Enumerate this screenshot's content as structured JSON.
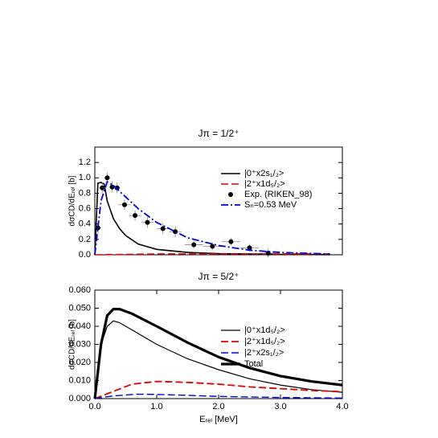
{
  "chart_data": [
    {
      "type": "line",
      "title": "Jπ = 1/2⁺",
      "ylabel": "dσCD/dEᵣₑₗ [b]",
      "xlim": [
        0,
        4
      ],
      "ylim": [
        0,
        1.4
      ],
      "yticks": [
        {
          "value": 0,
          "label": "0.0"
        },
        0.2,
        0.4,
        0.6,
        0.8,
        {
          "value": 1,
          "label": "1.0"
        },
        1.2
      ],
      "legend": "upper right",
      "series": [
        {
          "name": "|0⁺x2s₁/₂>",
          "color": "#000000",
          "dash": "solid",
          "width": 1.6,
          "x": [
            0,
            0.05,
            0.1,
            0.15,
            0.2,
            0.3,
            0.4,
            0.5,
            0.7,
            1.0,
            1.5,
            2.0,
            3.0,
            3.8
          ],
          "values": [
            0,
            0.93,
            0.94,
            0.92,
            0.7,
            0.47,
            0.34,
            0.25,
            0.14,
            0.07,
            0.03,
            0.015,
            0.005,
            0.002
          ]
        },
        {
          "name": "|2⁺x1d₅/₂>",
          "color": "#e00000",
          "dash": "dashed",
          "width": 1.6,
          "x": [
            0,
            0.5,
            1.0,
            2.0,
            3.0,
            3.8
          ],
          "values": [
            0,
            0.005,
            0.01,
            0.012,
            0.012,
            0.012
          ]
        },
        {
          "type": "scatter",
          "name": "Exp. (RIKEN_98)",
          "color": "#000000",
          "marker": "circle",
          "x": [
            0.05,
            0.12,
            0.2,
            0.28,
            0.36,
            0.48,
            0.65,
            0.85,
            1.1,
            1.3,
            1.6,
            1.9,
            2.2,
            2.5,
            2.8
          ],
          "values": [
            0.35,
            0.87,
            1.0,
            0.88,
            0.87,
            0.65,
            0.51,
            0.42,
            0.34,
            0.3,
            0.13,
            0.11,
            0.17,
            0.09,
            0.02
          ],
          "errors": [
            0.07,
            0.07,
            0.07,
            0.07,
            0.07,
            0.07,
            0.07,
            0.07,
            0.07,
            0.07,
            0.05,
            0.05,
            0.05,
            0.05,
            0.05
          ],
          "xerrors": [
            0.05,
            0.05,
            0.05,
            0.05,
            0.05,
            0.1,
            0.1,
            0.1,
            0.1,
            0.1,
            0.15,
            0.15,
            0.15,
            0.15,
            0.15
          ]
        },
        {
          "name": "Sₙ=0.53 MeV",
          "color": "#0000e0",
          "dash": "dashdot",
          "width": 1.8,
          "x": [
            0,
            0.1,
            0.2,
            0.3,
            0.5,
            0.7,
            1.0,
            1.5,
            2.0,
            2.5,
            3.0,
            3.8
          ],
          "values": [
            0,
            0.7,
            0.95,
            0.9,
            0.75,
            0.6,
            0.42,
            0.22,
            0.12,
            0.06,
            0.03,
            0.01
          ]
        }
      ]
    },
    {
      "type": "line",
      "title": "Jπ = 5/2⁺",
      "ylabel": "dσCD/dEᵣₑₗ [b]",
      "xlabel": "Eᵣₑₗ [MeV]",
      "xlim": [
        0,
        4
      ],
      "ylim": [
        0,
        0.06
      ],
      "xticks": [
        {
          "value": 0,
          "label": "0.0"
        },
        {
          "value": 1,
          "label": "1.0"
        },
        {
          "value": 2,
          "label": "2.0"
        },
        {
          "value": 3,
          "label": "3.0"
        },
        {
          "value": 4,
          "label": "4.0"
        }
      ],
      "yticks": [
        {
          "value": 0,
          "label": "0.000"
        },
        {
          "value": 0.01,
          "label": "0.010"
        },
        {
          "value": 0.02,
          "label": "0.020"
        },
        {
          "value": 0.03,
          "label": "0.030"
        },
        {
          "value": 0.04,
          "label": "0.040"
        },
        {
          "value": 0.05,
          "label": "0.050"
        },
        {
          "value": 0.06,
          "label": "0.060"
        }
      ],
      "legend": "upper right",
      "series": [
        {
          "name": "|0⁺x1d₅/₂>",
          "color": "#000000",
          "dash": "solid",
          "width": 1.2,
          "x": [
            0,
            0.1,
            0.2,
            0.3,
            0.4,
            0.6,
            1.0,
            1.5,
            2.0,
            2.5,
            3.0,
            3.5,
            4.0
          ],
          "values": [
            0,
            0.03,
            0.04,
            0.043,
            0.042,
            0.038,
            0.03,
            0.022,
            0.016,
            0.011,
            0.0075,
            0.005,
            0.0035
          ]
        },
        {
          "name": "|2⁺x1d₅/₂>",
          "color": "#e00000",
          "dash": "dashed",
          "width": 1.8,
          "x": [
            0,
            0.3,
            0.6,
            1.0,
            1.5,
            2.0,
            2.5,
            3.0,
            3.5,
            4.0
          ],
          "values": [
            0,
            0.004,
            0.008,
            0.0095,
            0.009,
            0.008,
            0.0065,
            0.0055,
            0.0045,
            0.0038
          ]
        },
        {
          "name": "|2⁺x2s₁/₂>",
          "color": "#0000e0",
          "dash": "dashed",
          "width": 1.4,
          "x": [
            0,
            0.3,
            0.7,
            1.0,
            1.5,
            2.0,
            3.0,
            4.0
          ],
          "values": [
            0,
            0.0015,
            0.0025,
            0.0023,
            0.0018,
            0.0012,
            0.0006,
            0.0003
          ]
        },
        {
          "name": "Total",
          "color": "#000000",
          "dash": "solid",
          "width": 3.2,
          "x": [
            0,
            0.1,
            0.2,
            0.3,
            0.4,
            0.6,
            1.0,
            1.5,
            2.0,
            2.5,
            3.0,
            3.5,
            4.0
          ],
          "values": [
            0,
            0.03,
            0.046,
            0.0495,
            0.0495,
            0.047,
            0.04,
            0.031,
            0.023,
            0.017,
            0.0125,
            0.0095,
            0.0075
          ]
        }
      ]
    }
  ]
}
